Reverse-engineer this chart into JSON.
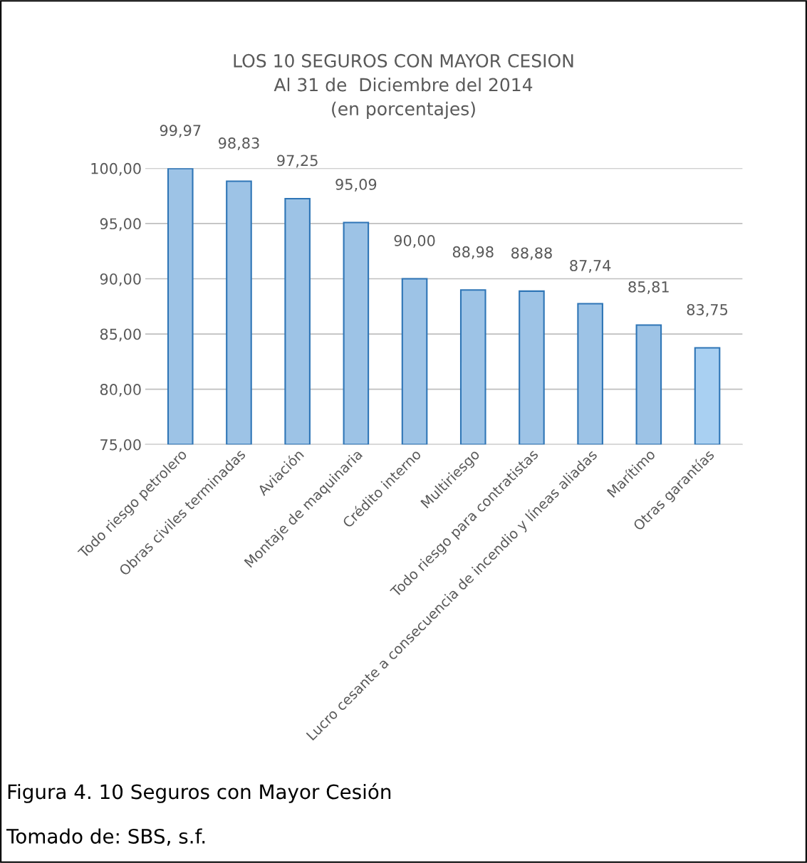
{
  "chart_data": {
    "type": "bar",
    "title": "LOS 10 SEGUROS CON MAYOR CESION\nAl 31 de  Diciembre del 2014\n(en porcentajes)",
    "categories": [
      "Todo riesgo petrolero",
      "Obras civiles terminadas",
      "Aviación",
      "Montaje de maquinaria",
      "Crédito interno",
      "Multiriesgo",
      "Todo riesgo para contratistas",
      "Lucro cesante a consecuencia de incendio y líneas aliadas",
      "Marítimo",
      "Otras garantías"
    ],
    "values": [
      99.97,
      98.83,
      97.25,
      95.09,
      90.0,
      88.98,
      88.88,
      87.74,
      85.81,
      83.75
    ],
    "colors": [
      "#9dc3e6",
      "#9dc3e6",
      "#9dc3e6",
      "#9dc3e6",
      "#9dc3e6",
      "#9dc3e6",
      "#9dc3e6",
      "#9dc3e6",
      "#9dc3e6",
      "#a9d0f2"
    ],
    "value_labels": [
      "99,97",
      "98,83",
      "97,25",
      "95,09",
      "90,00",
      "88,98",
      "88,88",
      "87,74",
      "85,81",
      "83,75"
    ],
    "ylim": [
      75,
      100
    ],
    "yticks": [
      {
        "value": 75,
        "label": "75,00"
      },
      {
        "value": 80,
        "label": "80,00"
      },
      {
        "value": 85,
        "label": "85,00"
      },
      {
        "value": 90,
        "label": "90,00"
      },
      {
        "value": 95,
        "label": "95,00"
      },
      {
        "value": 100,
        "label": "100,00"
      }
    ],
    "grid": "y",
    "annotations": [
      "Figura 4. 10 Seguros con Mayor Cesión",
      "Tomado de: SBS, s.f."
    ]
  }
}
